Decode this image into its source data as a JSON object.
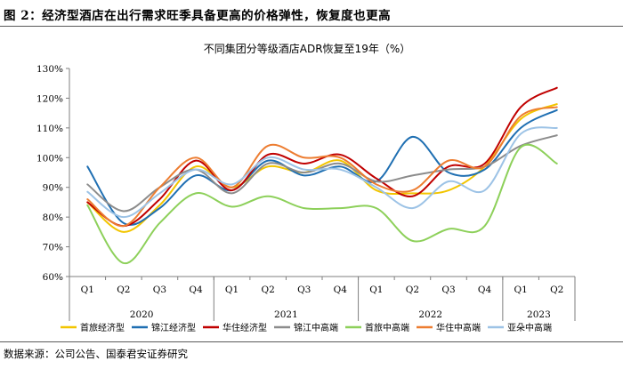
{
  "figure": {
    "title": "图 2：经济型酒店在出行需求旺季具备更高的价格弹性，恢复度也更高",
    "source": "数据来源：公司公告、国泰君安证券研究"
  },
  "chart_data": {
    "type": "line",
    "title": "不同集团分等级酒店ADR恢复至19年（%）",
    "x": [
      "Q1",
      "Q2",
      "Q3",
      "Q4",
      "Q1",
      "Q2",
      "Q3",
      "Q4",
      "Q1",
      "Q2",
      "Q3",
      "Q4",
      "Q1",
      "Q2"
    ],
    "year_groups": [
      {
        "label": "2020",
        "count": 4
      },
      {
        "label": "2021",
        "count": 4
      },
      {
        "label": "2022",
        "count": 4
      },
      {
        "label": "2023",
        "count": 2
      }
    ],
    "ylim": [
      60,
      130
    ],
    "yticks": [
      60,
      70,
      80,
      90,
      100,
      110,
      120,
      130
    ],
    "ytick_labels": [
      "60%",
      "70%",
      "80%",
      "90%",
      "100%",
      "110%",
      "120%",
      "130%"
    ],
    "grid": false,
    "legend_position": "bottom",
    "series": [
      {
        "name": "首旅经济型",
        "color": "#F2C500",
        "values": [
          85,
          75,
          84,
          97,
          90,
          97,
          95,
          99,
          89,
          88,
          89,
          97,
          113,
          118
        ]
      },
      {
        "name": "锦江经济型",
        "color": "#1F6FB2",
        "values": [
          97,
          78,
          83,
          94,
          89,
          99,
          94,
          97,
          92,
          107,
          95,
          96,
          110,
          116
        ]
      },
      {
        "name": "华住经济型",
        "color": "#C00000",
        "values": [
          85,
          77,
          86,
          99,
          89,
          101,
          98,
          101,
          93,
          87,
          97,
          98,
          117,
          123.5
        ]
      },
      {
        "name": "锦江中高端",
        "color": "#8C8C8C",
        "values": [
          91,
          82,
          90,
          96,
          88,
          98,
          95,
          98,
          92,
          94,
          96,
          97,
          104,
          107.5
        ]
      },
      {
        "name": "首旅中高端",
        "color": "#8DD05A",
        "values": [
          84,
          64.5,
          78,
          88,
          83.5,
          87,
          83,
          83,
          83,
          72,
          76,
          77,
          103.5,
          98
        ]
      },
      {
        "name": "华住中高端",
        "color": "#ED7D31",
        "values": [
          86,
          77,
          90,
          100,
          90,
          104,
          100,
          100,
          91,
          89,
          99,
          97,
          114,
          117
        ]
      },
      {
        "name": "亚朵中高端",
        "color": "#9DC3E6",
        "values": [
          88.5,
          80,
          88,
          96,
          91,
          100,
          96,
          96,
          90,
          83,
          92,
          89,
          108,
          110
        ]
      }
    ]
  }
}
